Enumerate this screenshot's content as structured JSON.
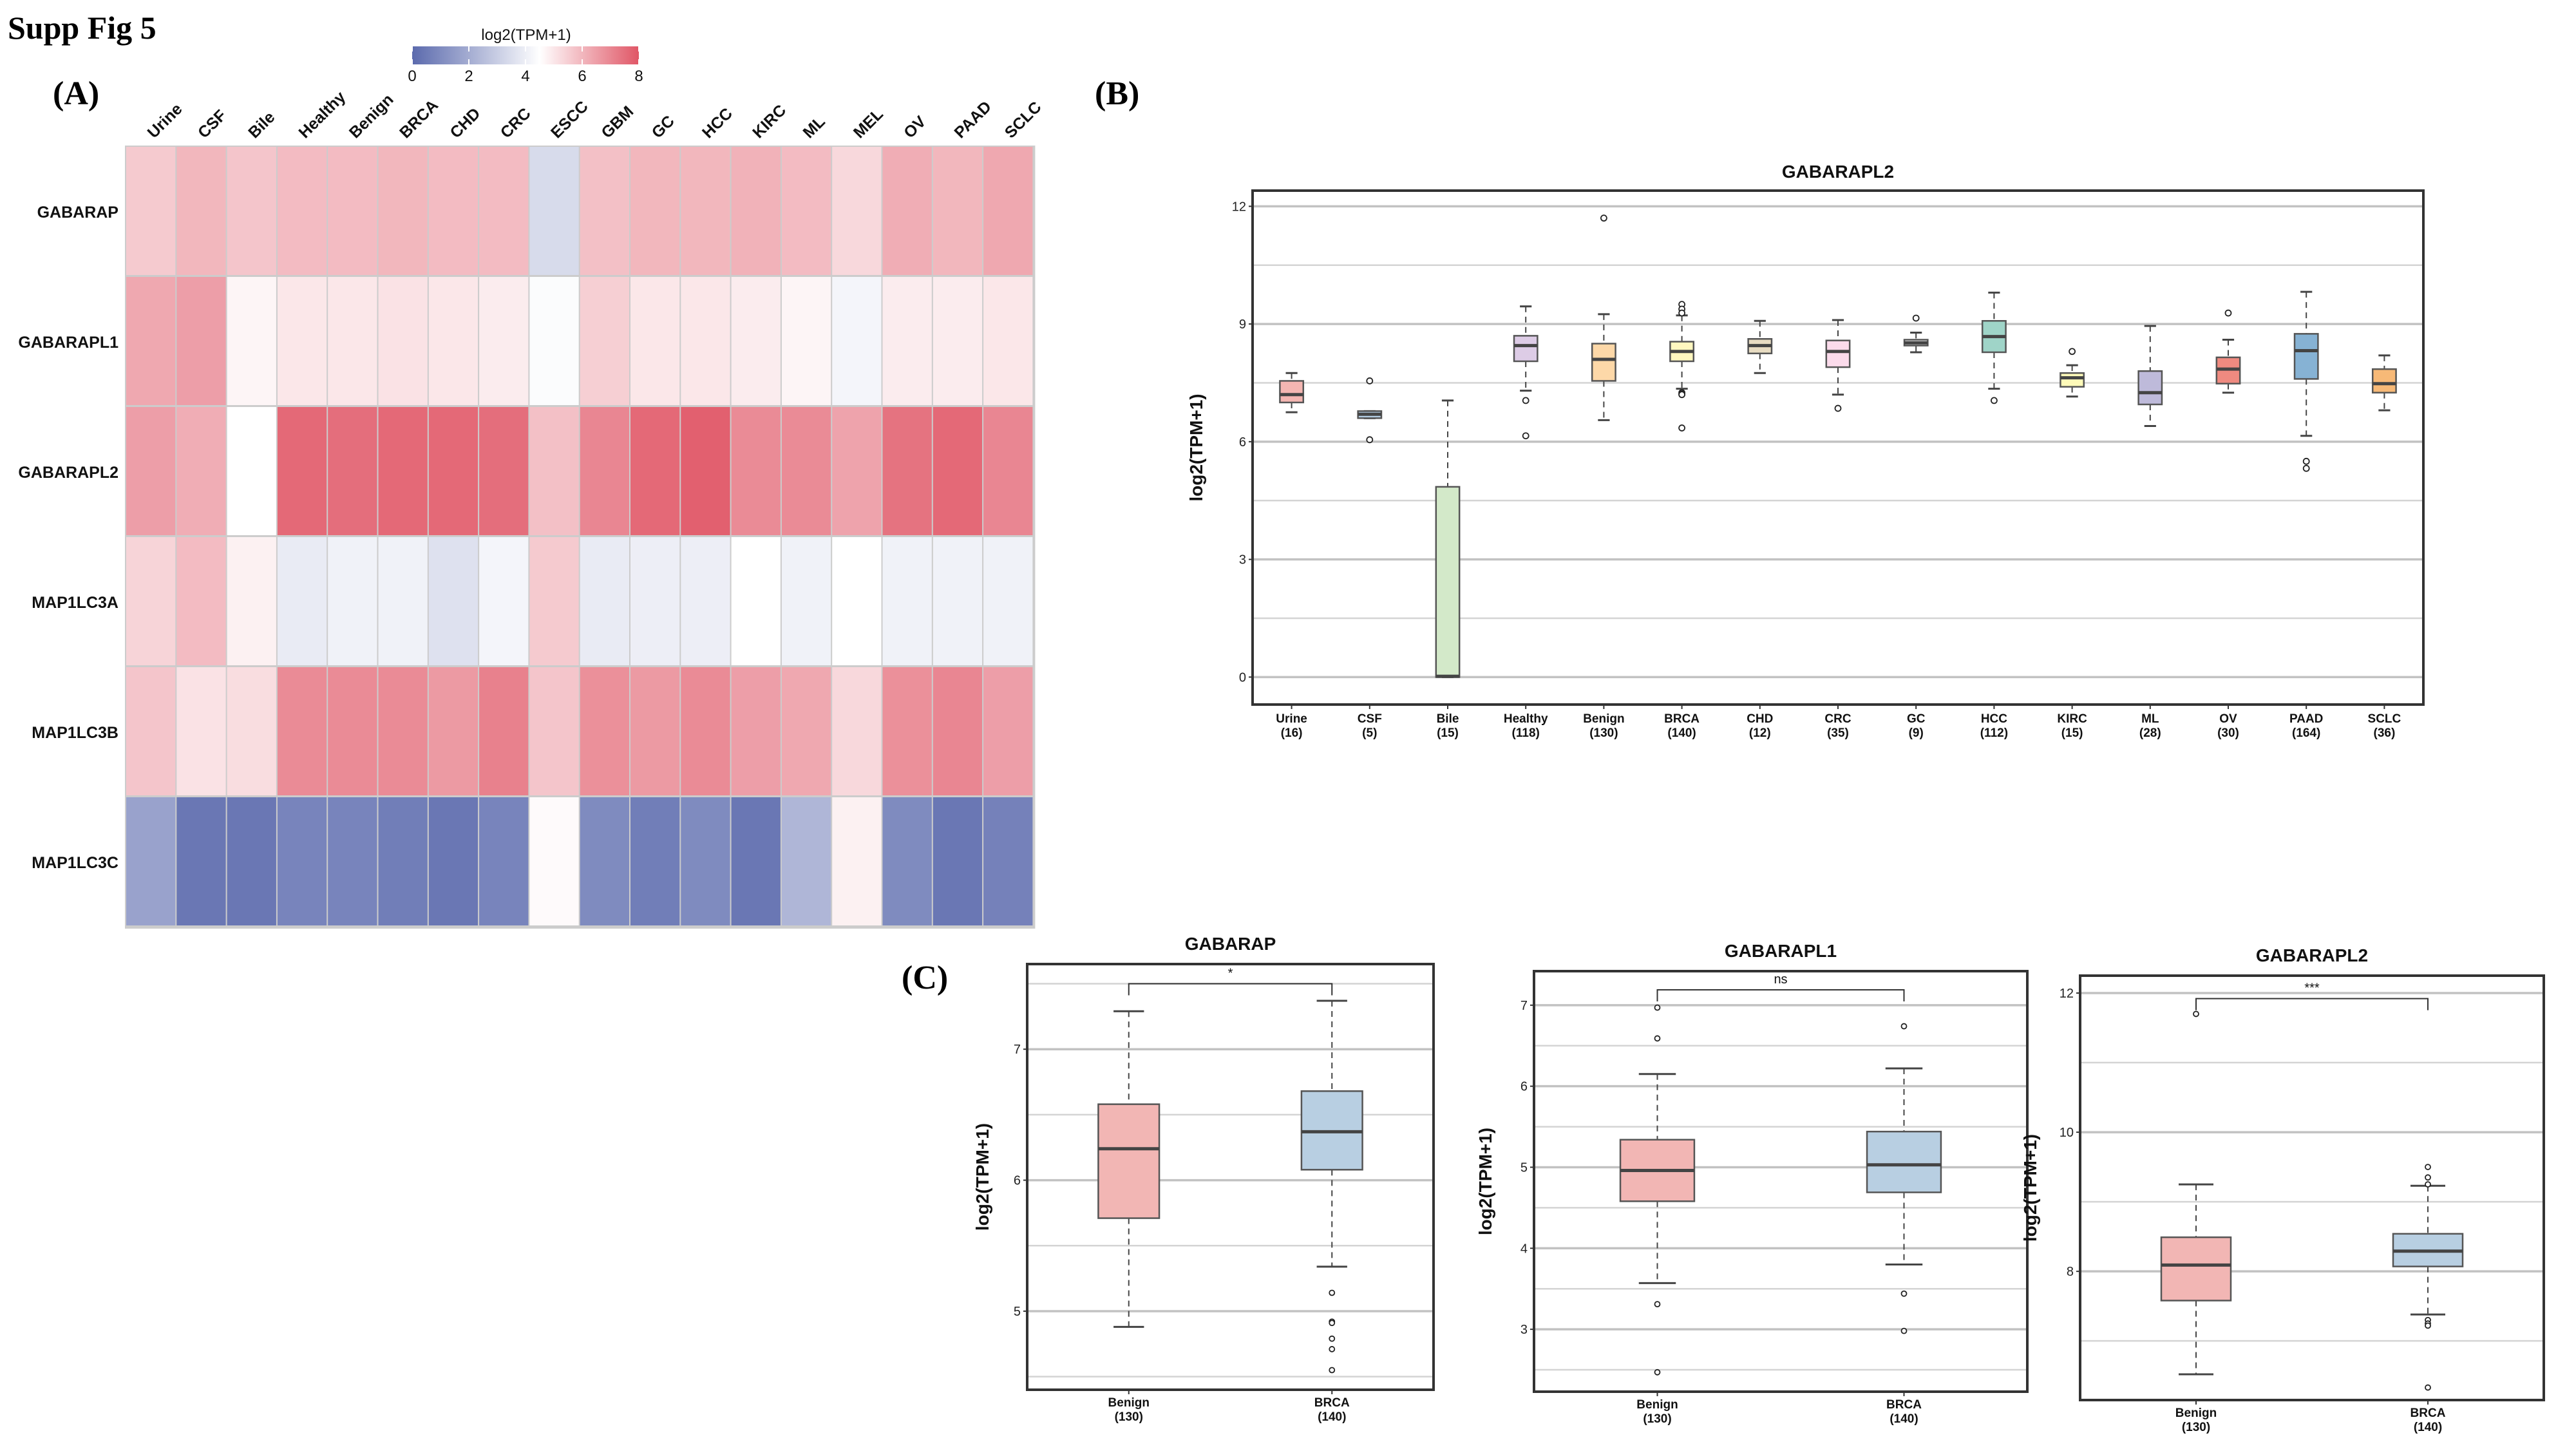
{
  "figure_title": "Supp Fig 5",
  "panels": {
    "a": "(A)",
    "b": "(B)",
    "c": "(C)"
  },
  "chart_data": [
    {
      "type": "heatmap",
      "panel": "A",
      "legend": {
        "title": "log2(TPM+1)",
        "ticks": [
          0,
          2,
          4,
          6,
          8
        ],
        "range": [
          0,
          8
        ],
        "midpoint": 4.5,
        "low_color": "#5b6aad",
        "mid_color": "#ffffff",
        "high_color": "#e05666",
        "placement": "top"
      },
      "columns": [
        "Urine",
        "CSF",
        "Bile",
        "Healthy",
        "Benign",
        "BRCA",
        "CHD",
        "CRC",
        "ESCC",
        "GBM",
        "GC",
        "HCC",
        "KIRC",
        "ML",
        "MEL",
        "OV",
        "PAAD",
        "SCLC"
      ],
      "rows": [
        "GABARAP",
        "GABARAPL1",
        "GABARAPL2",
        "MAP1LC3A",
        "MAP1LC3B",
        "MAP1LC3C"
      ],
      "values": [
        [
          5.6,
          6.0,
          5.7,
          5.9,
          5.9,
          6.0,
          5.9,
          5.9,
          3.4,
          5.8,
          6.0,
          6.0,
          6.1,
          5.9,
          5.3,
          6.2,
          6.0,
          6.3
        ],
        [
          6.3,
          6.5,
          4.7,
          5.0,
          5.0,
          5.1,
          5.0,
          4.9,
          4.4,
          5.5,
          5.0,
          5.0,
          4.9,
          4.7,
          4.2,
          4.9,
          4.9,
          5.0
        ],
        [
          6.5,
          6.2,
          4.5,
          7.6,
          7.5,
          7.6,
          7.6,
          7.5,
          5.8,
          7.0,
          7.6,
          7.8,
          6.9,
          6.9,
          6.4,
          7.4,
          7.6,
          7.0
        ],
        [
          5.4,
          5.9,
          4.8,
          3.9,
          4.1,
          4.1,
          3.6,
          4.2,
          5.6,
          3.9,
          4.0,
          4.0,
          4.5,
          4.1,
          4.5,
          4.1,
          4.1,
          4.1
        ],
        [
          5.7,
          5.1,
          5.2,
          6.9,
          6.9,
          6.9,
          6.6,
          7.1,
          5.7,
          6.8,
          6.6,
          6.9,
          6.5,
          6.3,
          5.3,
          6.8,
          7.0,
          6.5
        ],
        [
          1.7,
          0.4,
          0.4,
          0.8,
          0.8,
          0.6,
          0.4,
          0.8,
          4.6,
          1.0,
          0.6,
          1.0,
          0.4,
          2.3,
          4.8,
          1.0,
          0.4,
          0.7
        ]
      ]
    },
    {
      "type": "box",
      "panel": "B",
      "title": "GABARAPL2",
      "ylabel": "log2(TPM+1)",
      "ylim": [
        -0.7,
        12.4
      ],
      "yticks": [
        0,
        3,
        6,
        9,
        12
      ],
      "minor_grid": [
        1.5,
        4.5,
        7.5,
        10.5
      ],
      "groups": [
        {
          "name": "Urine",
          "n": "(16)",
          "color": "#f4b6b2",
          "q1": 7.0,
          "median": 7.2,
          "q3": 7.55,
          "lo": 6.75,
          "hi": 7.75,
          "outliers": []
        },
        {
          "name": "CSF",
          "n": "(5)",
          "color": "#b3cde3",
          "q1": 6.6,
          "median": 6.7,
          "q3": 6.78,
          "lo": 6.6,
          "hi": 6.78,
          "outliers": [
            7.55,
            6.05
          ]
        },
        {
          "name": "Bile",
          "n": "(15)",
          "color": "#d3e9c9",
          "q1": 0.0,
          "median": 0.02,
          "q3": 4.85,
          "lo": 0.0,
          "hi": 7.05,
          "outliers": []
        },
        {
          "name": "Healthy",
          "n": "(118)",
          "color": "#ddcce6",
          "q1": 8.05,
          "median": 8.45,
          "q3": 8.7,
          "lo": 7.3,
          "hi": 9.45,
          "outliers": [
            7.05,
            6.15
          ]
        },
        {
          "name": "Benign",
          "n": "(130)",
          "color": "#fdd8a8",
          "q1": 7.55,
          "median": 8.1,
          "q3": 8.5,
          "lo": 6.55,
          "hi": 9.25,
          "outliers": [
            11.7
          ]
        },
        {
          "name": "BRCA",
          "n": "(140)",
          "color": "#fff7bf",
          "q1": 8.05,
          "median": 8.3,
          "q3": 8.55,
          "lo": 7.35,
          "hi": 9.22,
          "outliers": [
            9.5,
            9.38,
            9.28,
            7.25,
            7.22,
            7.2,
            6.35
          ]
        },
        {
          "name": "CHD",
          "n": "(12)",
          "color": "#e8dcc2",
          "q1": 8.25,
          "median": 8.45,
          "q3": 8.62,
          "lo": 7.75,
          "hi": 9.08,
          "outliers": []
        },
        {
          "name": "CRC",
          "n": "(35)",
          "color": "#fbdbeb",
          "q1": 7.9,
          "median": 8.3,
          "q3": 8.58,
          "lo": 7.2,
          "hi": 9.1,
          "outliers": [
            6.85
          ]
        },
        {
          "name": "GC",
          "n": "(9)",
          "color": "#dddddd",
          "q1": 8.45,
          "median": 8.52,
          "q3": 8.6,
          "lo": 8.28,
          "hi": 8.78,
          "outliers": [
            9.15
          ]
        },
        {
          "name": "HCC",
          "n": "(112)",
          "color": "#9fd4c8",
          "q1": 8.28,
          "median": 8.68,
          "q3": 9.08,
          "lo": 7.35,
          "hi": 9.8,
          "outliers": [
            7.05
          ]
        },
        {
          "name": "KIRC",
          "n": "(15)",
          "color": "#fefab9",
          "q1": 7.4,
          "median": 7.63,
          "q3": 7.75,
          "lo": 7.15,
          "hi": 7.95,
          "outliers": [
            8.3
          ]
        },
        {
          "name": "ML",
          "n": "(28)",
          "color": "#bebada",
          "q1": 6.95,
          "median": 7.25,
          "q3": 7.8,
          "lo": 6.4,
          "hi": 8.95,
          "outliers": []
        },
        {
          "name": "OV",
          "n": "(30)",
          "color": "#ef8a80",
          "q1": 7.48,
          "median": 7.85,
          "q3": 8.15,
          "lo": 7.25,
          "hi": 8.6,
          "outliers": [
            9.28
          ]
        },
        {
          "name": "PAAD",
          "n": "(164)",
          "color": "#86b2d4",
          "q1": 7.6,
          "median": 8.32,
          "q3": 8.75,
          "lo": 6.15,
          "hi": 9.82,
          "outliers": [
            5.5,
            5.32
          ]
        },
        {
          "name": "SCLC",
          "n": "(36)",
          "color": "#f7b977",
          "q1": 7.25,
          "median": 7.48,
          "q3": 7.85,
          "lo": 6.8,
          "hi": 8.2,
          "outliers": []
        }
      ]
    },
    {
      "type": "box",
      "panel": "C",
      "title": "GABARAP",
      "ylabel": "log2(TPM+1)",
      "ylim": [
        4.4,
        7.65
      ],
      "yticks": [
        5,
        6,
        7
      ],
      "minor_grid": [
        4.5,
        5.5,
        6.5,
        7.5
      ],
      "significance": "*",
      "bracket_y": 7.5,
      "groups": [
        {
          "name": "Benign",
          "n": "(130)",
          "color": "#f2b6b4",
          "q1": 5.71,
          "median": 6.24,
          "q3": 6.58,
          "lo": 4.88,
          "hi": 7.29,
          "outliers": []
        },
        {
          "name": "BRCA",
          "n": "(140)",
          "color": "#b8cfe2",
          "q1": 6.08,
          "median": 6.37,
          "q3": 6.68,
          "lo": 5.34,
          "hi": 7.37,
          "outliers": [
            5.14,
            4.92,
            4.91,
            4.79,
            4.71,
            4.55
          ]
        }
      ]
    },
    {
      "type": "box",
      "panel": "C",
      "title": "GABARAPL1",
      "ylabel": "log2(TPM+1)",
      "ylim": [
        2.23,
        7.42
      ],
      "yticks": [
        3,
        4,
        5,
        6,
        7
      ],
      "minor_grid": [
        2.5,
        3.5,
        4.5,
        5.5,
        6.5
      ],
      "significance": "ns",
      "bracket_y": 7.19,
      "groups": [
        {
          "name": "Benign",
          "n": "(130)",
          "color": "#f2b6b4",
          "q1": 4.58,
          "median": 4.96,
          "q3": 5.34,
          "lo": 3.57,
          "hi": 6.15,
          "outliers": [
            6.97,
            6.59,
            3.31,
            2.47
          ]
        },
        {
          "name": "BRCA",
          "n": "(140)",
          "color": "#b8cfe2",
          "q1": 4.69,
          "median": 5.03,
          "q3": 5.44,
          "lo": 3.8,
          "hi": 6.22,
          "outliers": [
            6.74,
            3.44,
            2.98
          ]
        }
      ]
    },
    {
      "type": "box",
      "panel": "C",
      "title": "GABARAPL2",
      "ylabel": "log2(TPM+1)",
      "ylim": [
        6.15,
        12.25
      ],
      "yticks": [
        8,
        10,
        12
      ],
      "minor_grid": [
        7,
        9,
        11
      ],
      "significance": "***",
      "bracket_y": 11.92,
      "groups": [
        {
          "name": "Benign",
          "n": "(130)",
          "color": "#f2b6b4",
          "q1": 7.58,
          "median": 8.09,
          "q3": 8.49,
          "lo": 6.52,
          "hi": 9.25,
          "outliers": [
            11.7
          ]
        },
        {
          "name": "BRCA",
          "n": "(140)",
          "color": "#b8cfe2",
          "q1": 8.07,
          "median": 8.29,
          "q3": 8.54,
          "lo": 7.38,
          "hi": 9.23,
          "outliers": [
            9.5,
            9.35,
            9.25,
            7.3,
            7.25,
            7.22,
            6.33
          ]
        }
      ]
    }
  ]
}
